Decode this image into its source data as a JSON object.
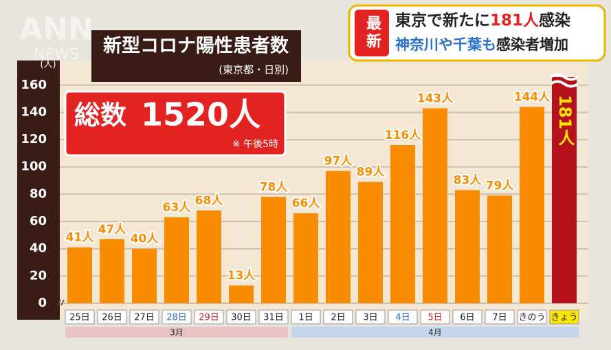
{
  "chart_data": {
    "type": "bar",
    "title": "新型コロナ陽性患者数",
    "subtitle": "(東京都・日別)",
    "y_unit": "(人)",
    "total_label": "総数",
    "total": "1520人",
    "total_note": "※ 午後5時",
    "badge": "最新",
    "headline": [
      "東京で新たに",
      "181人",
      "感染"
    ],
    "subheadline": [
      "神奈川や千葉も",
      "感染者増加"
    ],
    "logo": "ANN",
    "logo_sub": "NEWS",
    "categories": [
      "25日",
      "26日",
      "27日",
      "28日",
      "29日",
      "30日",
      "31日",
      "1日",
      "2日",
      "3日",
      "4日",
      "5日",
      "6日",
      "7日",
      "きのう",
      "きょう"
    ],
    "category_label_colors": [
      "#222",
      "#222",
      "#222",
      "#2a6fc9",
      "#d01818",
      "#222",
      "#222",
      "#222",
      "#222",
      "#222",
      "#2a6fc9",
      "#d01818",
      "#222",
      "#222",
      "#222",
      "#222"
    ],
    "values": [
      41,
      47,
      40,
      63,
      68,
      13,
      78,
      66,
      97,
      89,
      116,
      143,
      83,
      79,
      144,
      181
    ],
    "value_labels": [
      "41人",
      "47人",
      "40人",
      "63人",
      "68人",
      "13人",
      "78人",
      "66人",
      "97人",
      "89人",
      "116人",
      "143人",
      "83人",
      "79人",
      "144人",
      "181人"
    ],
    "color": "#f98c00",
    "highlight_color": "#b5121b",
    "groups": [
      {
        "label": "3月",
        "start": 0,
        "end": 6,
        "color": "#e9c4c4"
      },
      {
        "label": "4月",
        "start": 7,
        "end": 15,
        "color": "#c3d6ec"
      }
    ],
    "ylim": [
      0,
      172
    ],
    "yticks": [
      0,
      20,
      40,
      60,
      80,
      100,
      120,
      140,
      160
    ],
    "grid": true
  }
}
